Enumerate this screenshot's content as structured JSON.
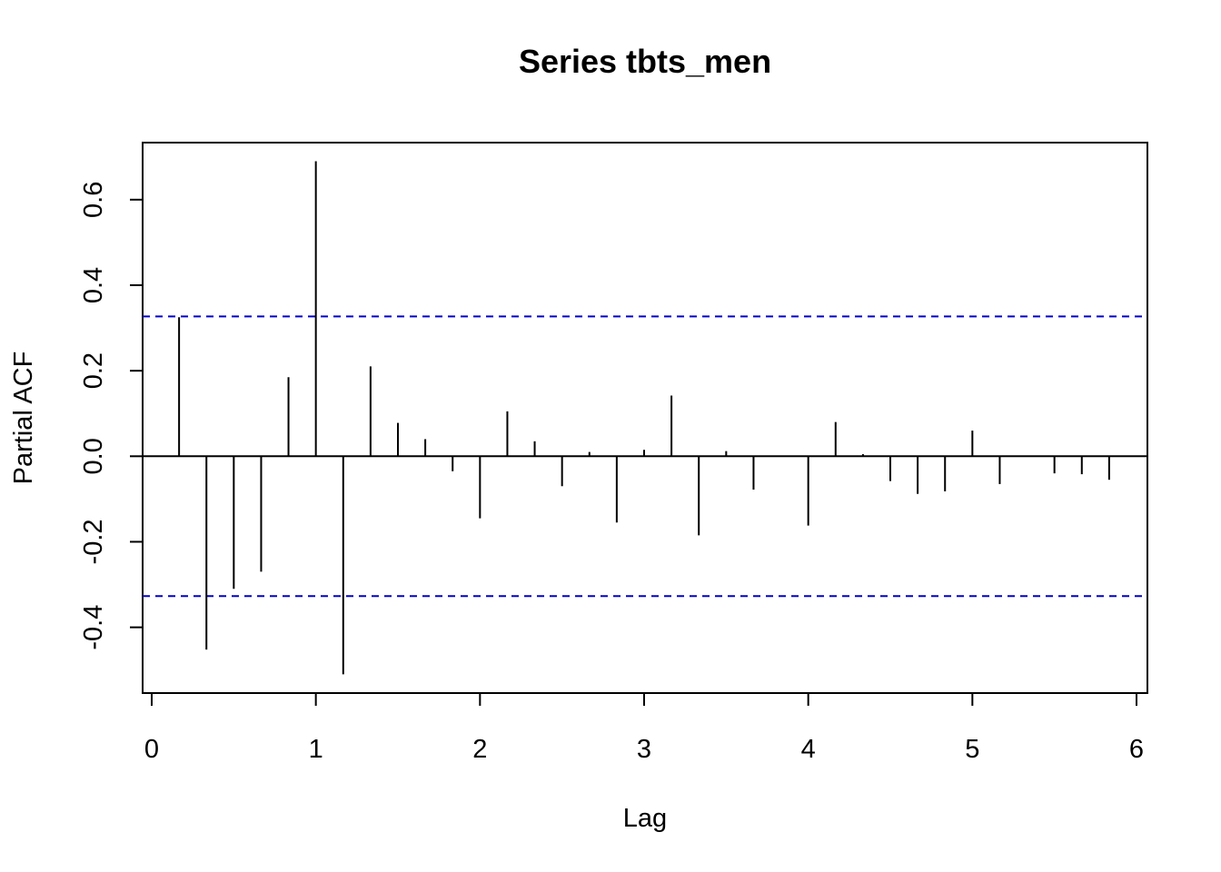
{
  "chart_data": {
    "type": "bar",
    "subtype": "pacf",
    "title": "Series  tbts_men",
    "xlabel": "Lag",
    "ylabel": "Partial ACF",
    "xlim": [
      0,
      6
    ],
    "ylim": [
      -0.52,
      0.73
    ],
    "x_ticks": [
      0,
      1,
      2,
      3,
      4,
      5,
      6
    ],
    "x_tick_labels": [
      "0",
      "1",
      "2",
      "3",
      "4",
      "5",
      "6"
    ],
    "y_ticks": [
      -0.4,
      -0.2,
      0.0,
      0.2,
      0.4,
      0.6
    ],
    "y_tick_labels": [
      "-0.4",
      "-0.2",
      "0.0",
      "0.2",
      "0.4",
      "0.6"
    ],
    "confidence_limit": 0.327,
    "confidence_line_color": "#0000CD",
    "spike_color": "#000000",
    "lags": [
      0.1667,
      0.3333,
      0.5,
      0.6667,
      0.8333,
      1.0,
      1.1667,
      1.3333,
      1.5,
      1.6667,
      1.8333,
      2.0,
      2.1667,
      2.3333,
      2.5,
      2.6667,
      2.8333,
      3.0,
      3.1667,
      3.3333,
      3.5,
      3.6667,
      3.8333,
      4.0,
      4.1667,
      4.3333,
      4.5,
      4.6667,
      4.8333,
      5.0,
      5.1667,
      5.3333,
      5.5,
      5.6667,
      5.8333
    ],
    "values": [
      0.325,
      -0.452,
      -0.31,
      -0.27,
      0.185,
      0.69,
      -0.51,
      0.21,
      0.078,
      0.04,
      -0.035,
      -0.145,
      0.105,
      0.035,
      -0.07,
      0.01,
      -0.155,
      0.015,
      0.142,
      -0.185,
      0.012,
      -0.078,
      0.0,
      -0.162,
      0.08,
      0.005,
      -0.058,
      -0.088,
      -0.082,
      0.06,
      -0.065,
      0.0,
      -0.04,
      -0.042,
      -0.055
    ]
  }
}
